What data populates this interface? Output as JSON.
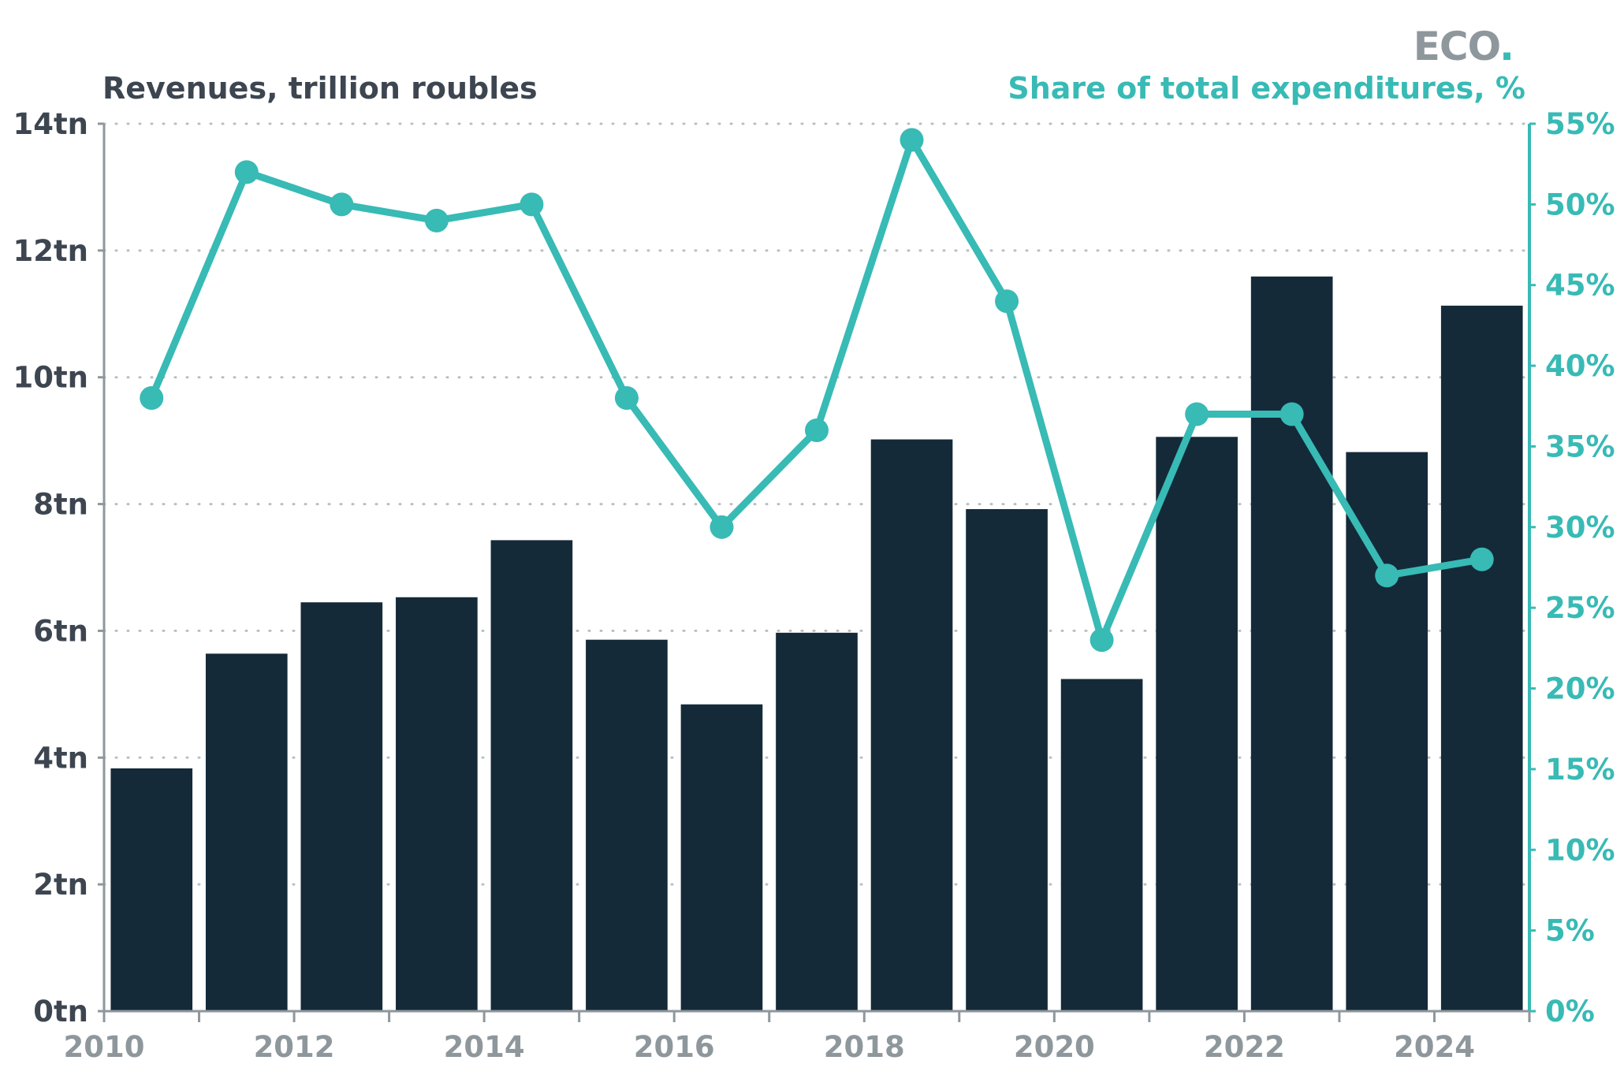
{
  "brand": {
    "logo_text": "ECO",
    "logo_dot": "."
  },
  "chart_data": {
    "type": "bar",
    "title": "",
    "left_axis_title": "Revenues, trillion roubles",
    "right_axis_title": "Share of total expenditures, %",
    "categories": [
      "2010",
      "2011",
      "2012",
      "2013",
      "2014",
      "2015",
      "2016",
      "2017",
      "2018",
      "2019",
      "2020",
      "2021",
      "2022",
      "2023",
      "2024"
    ],
    "x_tick_labels": [
      "2010",
      "2012",
      "2014",
      "2016",
      "2018",
      "2020",
      "2022",
      "2024"
    ],
    "series": [
      {
        "type": "bar",
        "axis": "left",
        "values": [
          3.83,
          5.64,
          6.45,
          6.53,
          7.43,
          5.86,
          4.84,
          5.97,
          9.02,
          7.92,
          5.24,
          9.06,
          11.59,
          8.82,
          11.13
        ]
      },
      {
        "type": "line",
        "axis": "right",
        "values": [
          38,
          52,
          50,
          49,
          50,
          38,
          30,
          36,
          54,
          44,
          23,
          37,
          37,
          27,
          28
        ]
      }
    ],
    "left_axis": {
      "ylim": [
        0,
        14
      ],
      "ticks": [
        0,
        2,
        4,
        6,
        8,
        10,
        12,
        14
      ],
      "tick_labels": [
        "0tn",
        "2tn",
        "4tn",
        "6tn",
        "8tn",
        "10tn",
        "12tn",
        "14tn"
      ]
    },
    "right_axis": {
      "ylim": [
        0,
        55
      ],
      "ticks": [
        0,
        5,
        10,
        15,
        20,
        25,
        30,
        35,
        40,
        45,
        50,
        55
      ],
      "tick_labels": [
        "0%",
        "5%",
        "10%",
        "15%",
        "20%",
        "25%",
        "30%",
        "35%",
        "40%",
        "45%",
        "50%",
        "55%"
      ]
    },
    "grid": "horizontal dotted",
    "colors": {
      "bar": "#142a39",
      "line": "#38bab5",
      "left_text": "#3d4650",
      "right_text": "#38bab5",
      "axis": "#8e979c",
      "x_text": "#8e979c",
      "grid": "#b9bec2"
    }
  }
}
